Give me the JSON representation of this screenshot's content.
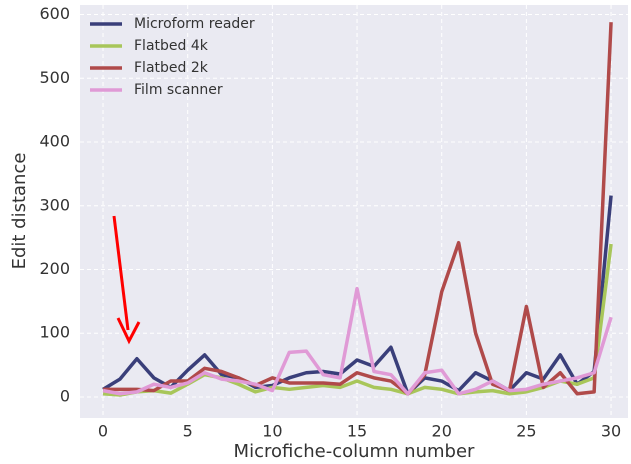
{
  "chart_data": {
    "type": "line",
    "xlabel": "Microfiche-column number",
    "ylabel": "Edit distance",
    "x": [
      0,
      1,
      2,
      3,
      4,
      5,
      6,
      7,
      8,
      9,
      10,
      11,
      12,
      13,
      14,
      15,
      16,
      17,
      18,
      19,
      20,
      21,
      22,
      23,
      24,
      25,
      26,
      27,
      28,
      29,
      30
    ],
    "series": [
      {
        "name": "Microform reader",
        "color": "#3a3f7a",
        "values": [
          12,
          28,
          60,
          30,
          15,
          42,
          66,
          35,
          30,
          15,
          18,
          30,
          38,
          40,
          36,
          58,
          48,
          78,
          5,
          30,
          25,
          10,
          38,
          25,
          10,
          38,
          28,
          66,
          20,
          40,
          316
        ]
      },
      {
        "name": "Flatbed 4k",
        "color": "#a8c65a",
        "values": [
          5,
          3,
          8,
          10,
          6,
          20,
          35,
          30,
          20,
          8,
          15,
          12,
          15,
          18,
          15,
          25,
          15,
          12,
          5,
          15,
          12,
          5,
          8,
          10,
          5,
          8,
          15,
          25,
          20,
          30,
          240
        ]
      },
      {
        "name": "Flatbed 2k",
        "color": "#b04a4a",
        "values": [
          12,
          12,
          12,
          10,
          25,
          25,
          45,
          40,
          30,
          18,
          30,
          22,
          22,
          22,
          20,
          38,
          30,
          25,
          5,
          35,
          165,
          242,
          100,
          20,
          10,
          142,
          15,
          38,
          5,
          8,
          588
        ]
      },
      {
        "name": "Film scanner",
        "color": "#e09ad6",
        "values": [
          10,
          5,
          8,
          20,
          15,
          22,
          38,
          28,
          25,
          20,
          10,
          70,
          72,
          35,
          30,
          170,
          40,
          35,
          5,
          38,
          42,
          5,
          12,
          25,
          10,
          12,
          20,
          25,
          30,
          38,
          125
        ]
      }
    ],
    "xlim": [
      -1.36,
      31.0
    ],
    "xticks": [
      0,
      5,
      10,
      15,
      20,
      25,
      30
    ],
    "ylim": [
      -33,
      615
    ],
    "yticks": [
      0,
      100,
      200,
      300,
      400,
      500,
      600
    ],
    "grid": true,
    "legend": "upper left"
  }
}
